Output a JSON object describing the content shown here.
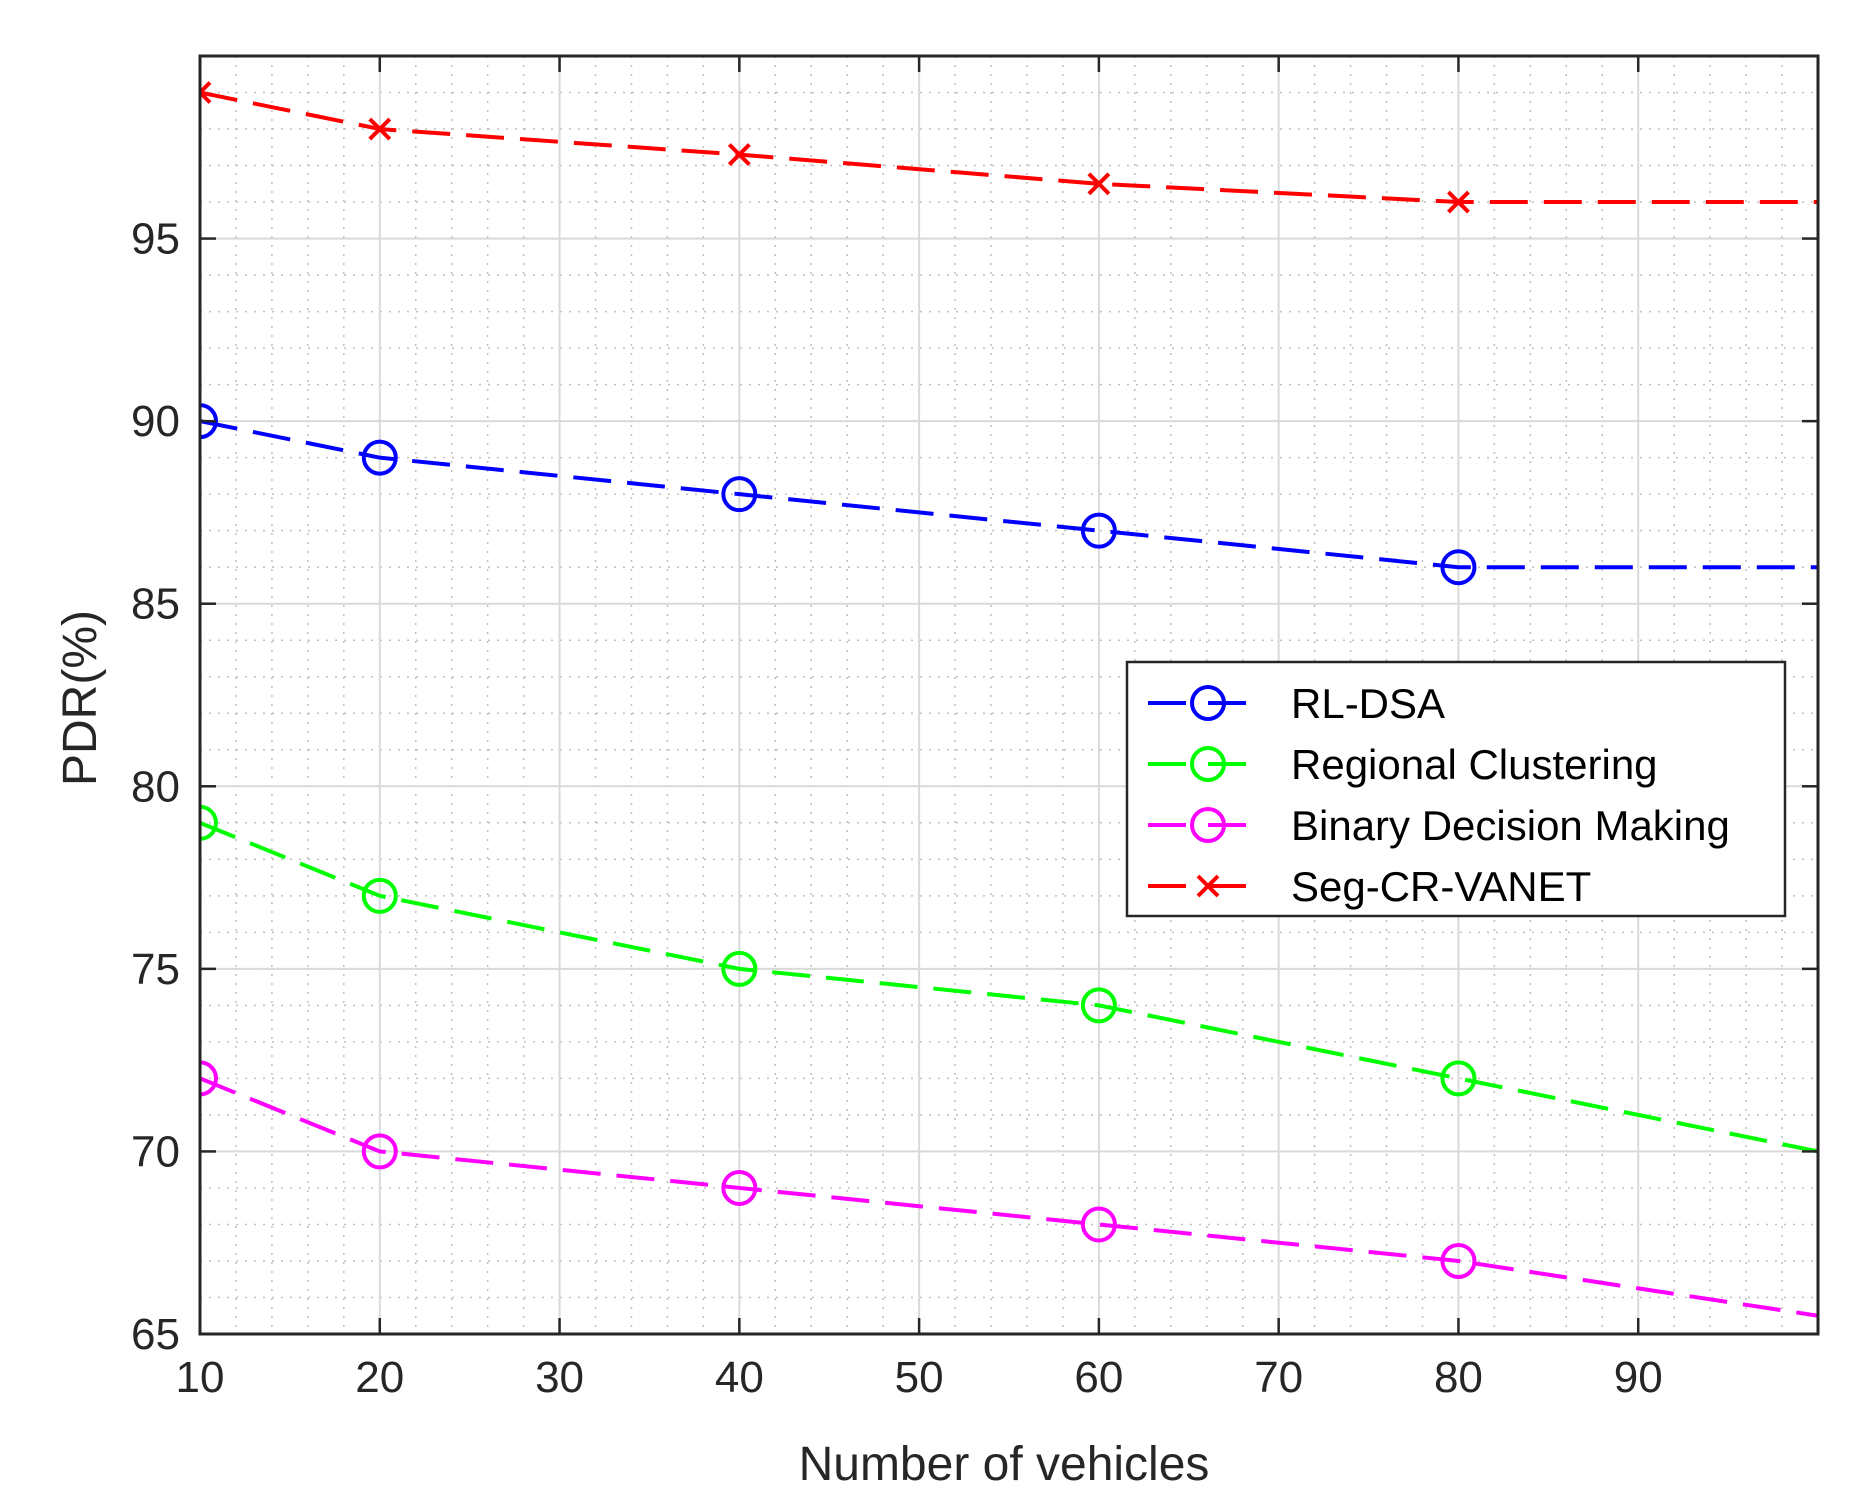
{
  "chart_data": {
    "type": "line",
    "title": "",
    "xlabel": "Number of vehicles",
    "ylabel": "PDR(%)",
    "xlim": [
      10,
      100
    ],
    "ylim": [
      65,
      100
    ],
    "xticks": [
      10,
      20,
      30,
      40,
      50,
      60,
      70,
      80,
      90
    ],
    "yticks": [
      65,
      70,
      75,
      80,
      85,
      90,
      95
    ],
    "x": [
      10,
      20,
      40,
      60,
      80,
      100
    ],
    "grid": true,
    "minor_grid": true,
    "legend_position": "center-right",
    "series": [
      {
        "name": "RL-DSA",
        "color": "#0000ff",
        "marker": "circle",
        "line_style": "dashed",
        "values": [
          90,
          89,
          88,
          87,
          86,
          86
        ]
      },
      {
        "name": "Regional Clustering",
        "color": "#00ff00",
        "marker": "circle",
        "line_style": "dashed",
        "values": [
          79,
          77,
          75,
          74,
          72,
          70
        ]
      },
      {
        "name": "Binary Decision Making",
        "color": "#ff00ff",
        "marker": "circle",
        "line_style": "dashed",
        "values": [
          72,
          70,
          69,
          68,
          67,
          65.5
        ]
      },
      {
        "name": "Seg-CR-VANET",
        "color": "#ff0000",
        "marker": "x",
        "line_style": "dashed",
        "values": [
          99,
          98,
          97.3,
          96.5,
          96,
          96
        ]
      }
    ]
  }
}
